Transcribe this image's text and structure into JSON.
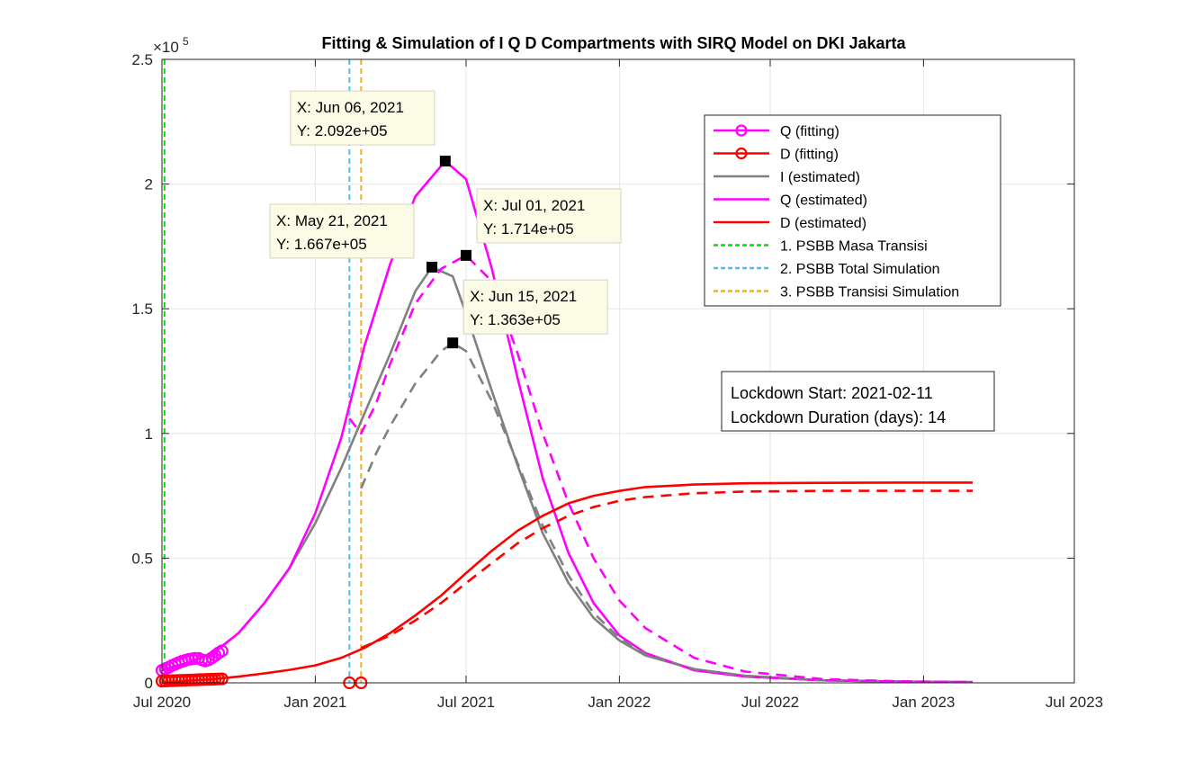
{
  "chart_data": {
    "type": "line",
    "title": "Fitting & Simulation of  I Q D Compartments with SIRQ Model on DKI Jakarta",
    "xlabel": "",
    "ylabel": "",
    "y_exponent_label": "×10",
    "y_exponent_power": "5",
    "xlim": [
      "2020-07-01",
      "2023-07-01"
    ],
    "ylim": [
      0,
      250000
    ],
    "grid": true,
    "x_ticks": [
      {
        "date": "2020-07-01",
        "label": "Jul 2020"
      },
      {
        "date": "2021-01-01",
        "label": "Jan 2021"
      },
      {
        "date": "2021-07-01",
        "label": "Jul 2021"
      },
      {
        "date": "2022-01-01",
        "label": "Jan 2022"
      },
      {
        "date": "2022-07-01",
        "label": "Jul 2022"
      },
      {
        "date": "2023-01-01",
        "label": "Jan 2023"
      },
      {
        "date": "2023-07-01",
        "label": "Jul 2023"
      }
    ],
    "y_ticks": [
      {
        "value": 0,
        "label": "0"
      },
      {
        "value": 50000,
        "label": "0.5"
      },
      {
        "value": 100000,
        "label": "1"
      },
      {
        "value": 150000,
        "label": "1.5"
      },
      {
        "value": 200000,
        "label": "2"
      },
      {
        "value": 250000,
        "label": "2.5"
      }
    ],
    "series": [
      {
        "name": "Q (fitting)",
        "color": "#ff00ff",
        "style": "markers",
        "marker": "circle",
        "x": [
          "2020-07-01",
          "2020-07-05",
          "2020-07-09",
          "2020-07-13",
          "2020-07-17",
          "2020-07-21",
          "2020-07-25",
          "2020-07-29",
          "2020-08-02",
          "2020-08-06",
          "2020-08-10",
          "2020-08-14",
          "2020-08-18",
          "2020-08-22",
          "2020-08-26",
          "2020-08-30",
          "2020-09-03",
          "2020-09-07",
          "2020-09-11"
        ],
        "y": [
          5000,
          5600,
          6200,
          6900,
          7500,
          8100,
          8600,
          9000,
          9400,
          9600,
          9800,
          9800,
          9200,
          8800,
          9200,
          10000,
          11000,
          12000,
          12800
        ]
      },
      {
        "name": "D (fitting)",
        "color": "#ff0000",
        "style": "markers",
        "marker": "circle",
        "x": [
          "2020-07-01",
          "2020-07-05",
          "2020-07-09",
          "2020-07-13",
          "2020-07-17",
          "2020-07-21",
          "2020-07-25",
          "2020-07-29",
          "2020-08-02",
          "2020-08-06",
          "2020-08-10",
          "2020-08-14",
          "2020-08-18",
          "2020-08-22",
          "2020-08-26",
          "2020-08-30",
          "2020-09-03",
          "2020-09-07",
          "2020-09-11",
          "2021-02-11",
          "2021-02-25"
        ],
        "y": [
          700,
          750,
          800,
          850,
          900,
          950,
          1000,
          1050,
          1100,
          1150,
          1200,
          1250,
          1300,
          1350,
          1400,
          1450,
          1500,
          1550,
          1600,
          0,
          0
        ]
      },
      {
        "name": "I (estimated)",
        "color": "#808080",
        "style": "solid",
        "x": [
          "2020-07-01",
          "2020-08-01",
          "2020-09-01",
          "2020-10-01",
          "2020-11-01",
          "2020-12-01",
          "2021-01-01",
          "2021-02-01",
          "2021-03-01",
          "2021-04-01",
          "2021-05-01",
          "2021-05-21",
          "2021-06-15",
          "2021-07-01",
          "2021-08-01",
          "2021-09-01",
          "2021-10-01",
          "2021-11-01",
          "2021-12-01",
          "2022-01-01",
          "2022-02-01",
          "2022-04-01",
          "2022-06-01",
          "2022-09-01",
          "2022-12-01",
          "2023-03-01"
        ],
        "y": [
          5500,
          8000,
          12000,
          20000,
          32000,
          46000,
          64000,
          86000,
          108000,
          132000,
          157000,
          166700,
          163000,
          148000,
          117000,
          87000,
          60000,
          40000,
          26000,
          17000,
          11000,
          5500,
          2800,
          1000,
          500,
          300
        ]
      },
      {
        "name": "Q (estimated)",
        "color": "#ff00ff",
        "style": "solid",
        "x": [
          "2020-07-01",
          "2020-08-01",
          "2020-09-01",
          "2020-10-01",
          "2020-11-01",
          "2020-12-01",
          "2021-01-01",
          "2021-02-01",
          "2021-03-01",
          "2021-04-01",
          "2021-05-01",
          "2021-06-06",
          "2021-07-01",
          "2021-08-01",
          "2021-09-01",
          "2021-10-01",
          "2021-11-01",
          "2021-12-01",
          "2022-01-01",
          "2022-02-01",
          "2022-04-01",
          "2022-06-01",
          "2022-09-01",
          "2022-12-01",
          "2023-03-01"
        ],
        "y": [
          5000,
          8000,
          12000,
          20000,
          32000,
          46000,
          68000,
          98000,
          135000,
          168000,
          195000,
          209200,
          202000,
          166000,
          122000,
          82000,
          52000,
          32000,
          19000,
          12000,
          5000,
          2500,
          1000,
          500,
          300
        ]
      },
      {
        "name": "D (estimated)",
        "color": "#ff0000",
        "style": "solid",
        "x": [
          "2020-07-01",
          "2020-08-01",
          "2020-09-01",
          "2020-10-01",
          "2020-11-01",
          "2020-12-01",
          "2021-01-01",
          "2021-02-01",
          "2021-03-01",
          "2021-04-01",
          "2021-05-01",
          "2021-06-01",
          "2021-07-01",
          "2021-08-01",
          "2021-09-01",
          "2021-10-01",
          "2021-11-01",
          "2021-12-01",
          "2022-01-01",
          "2022-02-01",
          "2022-04-01",
          "2022-06-01",
          "2022-09-01",
          "2022-12-01",
          "2023-03-01"
        ],
        "y": [
          0,
          800,
          1500,
          2500,
          3800,
          5200,
          7000,
          10000,
          14000,
          20000,
          27000,
          35000,
          44000,
          53000,
          61000,
          67000,
          72000,
          75000,
          77000,
          78500,
          79500,
          80000,
          80200,
          80300,
          80300
        ]
      },
      {
        "name": "",
        "color": "#808080",
        "style": "dashed",
        "x": [
          "2021-02-25",
          "2021-03-15",
          "2021-04-01",
          "2021-05-01",
          "2021-06-01",
          "2021-06-15",
          "2021-07-01",
          "2021-08-01",
          "2021-09-01",
          "2021-10-01",
          "2021-11-01",
          "2021-12-01",
          "2022-01-01",
          "2022-02-01",
          "2022-04-01",
          "2022-06-01",
          "2022-09-01",
          "2022-12-01",
          "2023-03-01"
        ],
        "y": [
          78000,
          92000,
          103000,
          120000,
          133000,
          136300,
          133000,
          113000,
          88000,
          63000,
          43000,
          28000,
          18000,
          11500,
          5500,
          2800,
          1000,
          500,
          300
        ]
      },
      {
        "name": "",
        "color": "#ff00ff",
        "style": "dashed",
        "x": [
          "2021-02-11",
          "2021-02-25",
          "2021-03-15",
          "2021-04-01",
          "2021-05-01",
          "2021-06-01",
          "2021-07-01",
          "2021-08-01",
          "2021-09-01",
          "2021-10-01",
          "2021-11-01",
          "2021-12-01",
          "2022-01-01",
          "2022-02-01",
          "2022-04-01",
          "2022-06-01",
          "2022-09-01",
          "2022-12-01",
          "2023-03-01"
        ],
        "y": [
          106000,
          100000,
          112000,
          128000,
          152000,
          166000,
          171400,
          161000,
          132000,
          100000,
          72000,
          50000,
          33000,
          22000,
          10000,
          4500,
          1500,
          600,
          300
        ]
      },
      {
        "name": "",
        "color": "#ff0000",
        "style": "dashed",
        "x": [
          "2021-02-25",
          "2021-04-01",
          "2021-05-01",
          "2021-06-01",
          "2021-07-01",
          "2021-08-01",
          "2021-09-01",
          "2021-10-01",
          "2021-11-01",
          "2021-12-01",
          "2022-01-01",
          "2022-02-01",
          "2022-04-01",
          "2022-06-01",
          "2022-09-01",
          "2022-12-01",
          "2023-03-01"
        ],
        "y": [
          14000,
          19000,
          25000,
          32000,
          40000,
          48000,
          56000,
          62000,
          67000,
          70500,
          73000,
          74500,
          76000,
          76700,
          77000,
          77000,
          77000
        ]
      }
    ],
    "vertical_lines": [
      {
        "name": "1. PSBB Masa Transisi",
        "date": "2020-07-04",
        "color": "#00e000"
      },
      {
        "name": "2. PSBB Total Simulation",
        "date": "2021-02-11",
        "color": "#4dbeee"
      },
      {
        "name": "3. PSBB Transisi Simulation",
        "date": "2021-02-25",
        "color": "#edb120"
      }
    ],
    "datatips": [
      {
        "date": "2021-06-06",
        "value": 209200,
        "line1": "X: Jun 06, 2021",
        "line2": "Y: 2.092e+05"
      },
      {
        "date": "2021-05-21",
        "value": 166700,
        "line1": "X: May 21, 2021",
        "line2": "Y: 1.667e+05"
      },
      {
        "date": "2021-07-01",
        "value": 171400,
        "line1": "X: Jul 01, 2021",
        "line2": "Y: 1.714e+05"
      },
      {
        "date": "2021-06-15",
        "value": 136300,
        "line1": "X: Jun 15, 2021",
        "line2": "Y: 1.363e+05"
      }
    ],
    "legend": {
      "placement": "top-right",
      "entries": [
        {
          "label": "Q (fitting)",
          "color": "#ff00ff",
          "style": "solid",
          "marker": "circle"
        },
        {
          "label": "D (fitting)",
          "color": "#ff0000",
          "style": "solid",
          "marker": "circle"
        },
        {
          "label": "I (estimated)",
          "color": "#808080",
          "style": "solid"
        },
        {
          "label": "Q (estimated)",
          "color": "#ff00ff",
          "style": "solid"
        },
        {
          "label": "D (estimated)",
          "color": "#ff0000",
          "style": "solid"
        },
        {
          "label": "1. PSBB Masa Transisi",
          "color": "#00e000",
          "style": "dashed"
        },
        {
          "label": "2. PSBB Total Simulation",
          "color": "#4dbeee",
          "style": "dashed"
        },
        {
          "label": "3. PSBB Transisi Simulation",
          "color": "#edb120",
          "style": "dashed"
        }
      ]
    },
    "annotation": {
      "lines": [
        "Lockdown Start: 2021-02-11",
        "Lockdown Duration (days): 14"
      ]
    }
  }
}
